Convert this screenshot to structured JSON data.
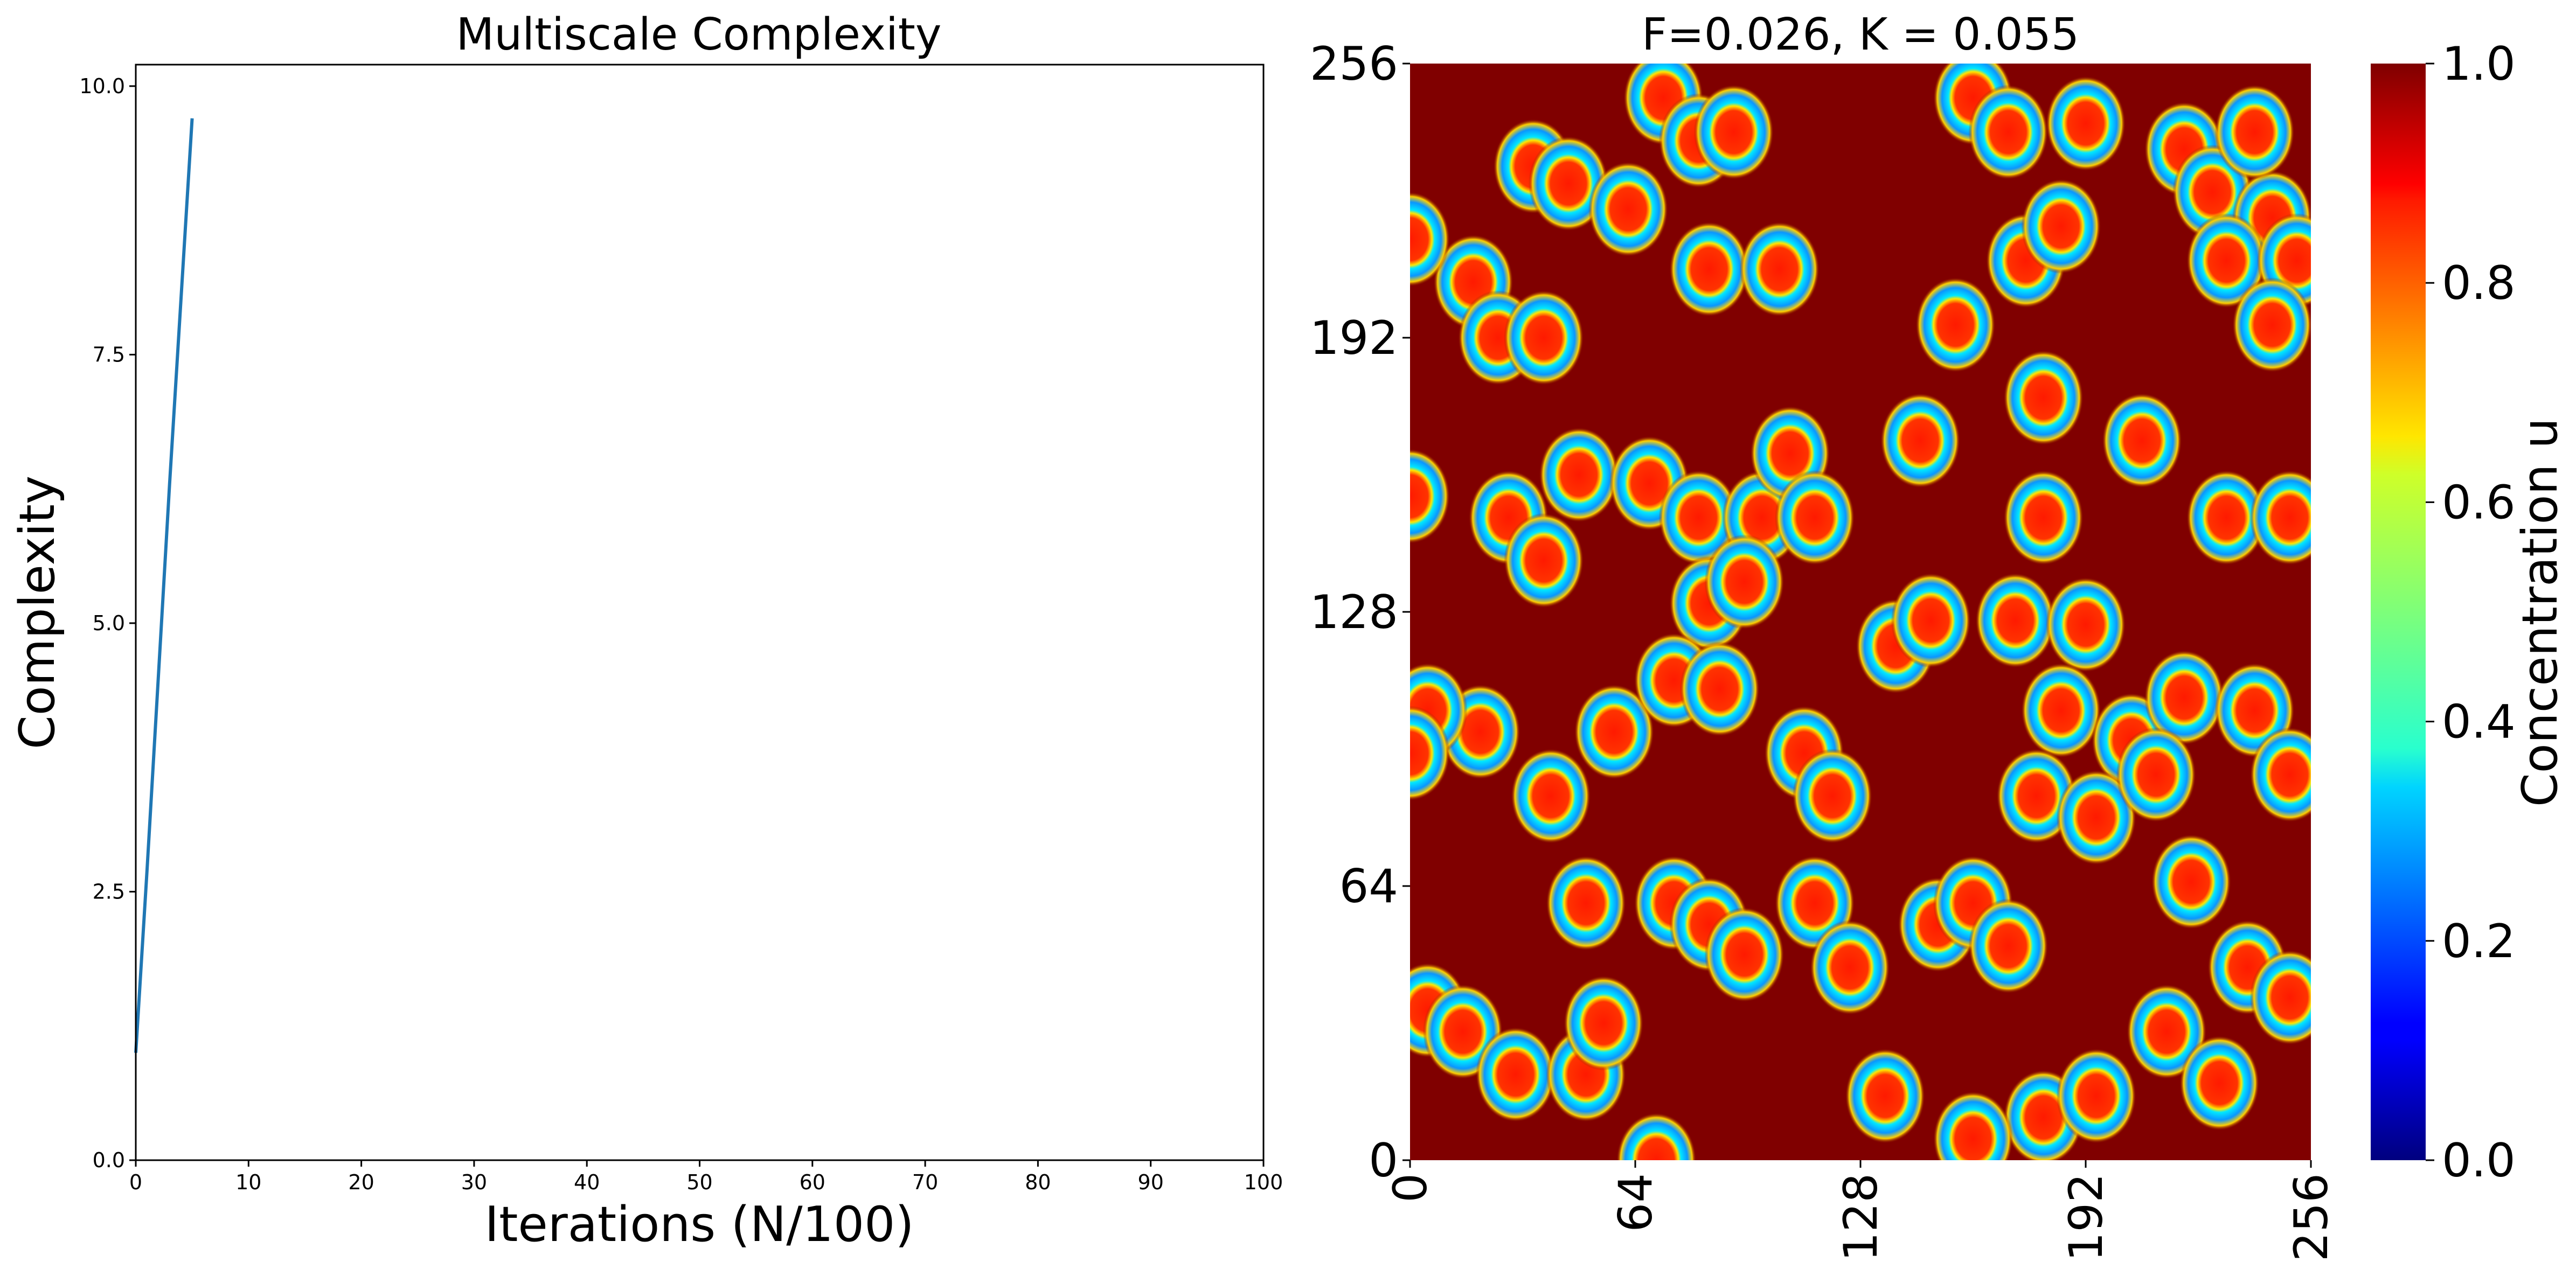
{
  "chart_data": [
    {
      "type": "line",
      "title": "Multiscale Complexity",
      "xlabel": "Iterations (N/100)",
      "ylabel": "Complexity",
      "xlim": [
        0,
        100
      ],
      "ylim": [
        0,
        10.2
      ],
      "xticks": [
        "0",
        "10",
        "20",
        "30",
        "40",
        "50",
        "60",
        "70",
        "80",
        "90",
        "100"
      ],
      "yticks": [
        "0.0",
        "2.5",
        "5.0",
        "7.5",
        "10.0"
      ],
      "line_color": "#1f77b4",
      "series": [
        {
          "x": [
            0,
            1,
            2,
            3,
            4,
            5
          ],
          "y": [
            1.0,
            2.7,
            4.5,
            6.3,
            8.0,
            9.7
          ]
        }
      ]
    },
    {
      "type": "heatmap",
      "title": "F=0.026, K = 0.055",
      "xticks": [
        "0",
        "64",
        "128",
        "192",
        "256"
      ],
      "yticks": [
        "0",
        "64",
        "128",
        "192",
        "256"
      ],
      "xlim": [
        0,
        256
      ],
      "ylim": [
        0,
        256
      ],
      "colormap": "jet",
      "colorbar_label": "Concentration u",
      "colorbar_ticks": [
        "0.0",
        "0.2",
        "0.4",
        "0.6",
        "0.8",
        "1.0"
      ],
      "background_color": "#800000",
      "spots": [
        [
          35,
          232
        ],
        [
          45,
          228
        ],
        [
          18,
          205
        ],
        [
          25,
          192
        ],
        [
          38,
          192
        ],
        [
          62,
          222
        ],
        [
          72,
          248
        ],
        [
          82,
          238
        ],
        [
          92,
          240
        ],
        [
          85,
          208
        ],
        [
          105,
          208
        ],
        [
          160,
          248
        ],
        [
          170,
          240
        ],
        [
          192,
          242
        ],
        [
          220,
          236
        ],
        [
          228,
          226
        ],
        [
          245,
          220
        ],
        [
          240,
          240
        ],
        [
          232,
          210
        ],
        [
          252,
          210
        ],
        [
          155,
          195
        ],
        [
          175,
          210
        ],
        [
          185,
          218
        ],
        [
          245,
          195
        ],
        [
          0,
          215
        ],
        [
          0,
          155
        ],
        [
          28,
          150
        ],
        [
          38,
          140
        ],
        [
          48,
          160
        ],
        [
          68,
          158
        ],
        [
          82,
          150
        ],
        [
          100,
          150
        ],
        [
          108,
          165
        ],
        [
          115,
          150
        ],
        [
          85,
          130
        ],
        [
          95,
          135
        ],
        [
          145,
          168
        ],
        [
          180,
          178
        ],
        [
          180,
          150
        ],
        [
          208,
          168
        ],
        [
          232,
          150
        ],
        [
          250,
          150
        ],
        [
          138,
          120
        ],
        [
          148,
          126
        ],
        [
          172,
          126
        ],
        [
          192,
          125
        ],
        [
          185,
          105
        ],
        [
          205,
          98
        ],
        [
          220,
          108
        ],
        [
          178,
          85
        ],
        [
          195,
          80
        ],
        [
          212,
          90
        ],
        [
          20,
          100
        ],
        [
          40,
          85
        ],
        [
          58,
          100
        ],
        [
          75,
          112
        ],
        [
          88,
          110
        ],
        [
          112,
          95
        ],
        [
          120,
          85
        ],
        [
          5,
          105
        ],
        [
          0,
          95
        ],
        [
          240,
          105
        ],
        [
          250,
          90
        ],
        [
          50,
          60
        ],
        [
          75,
          60
        ],
        [
          85,
          55
        ],
        [
          95,
          48
        ],
        [
          115,
          60
        ],
        [
          125,
          45
        ],
        [
          150,
          55
        ],
        [
          160,
          60
        ],
        [
          170,
          50
        ],
        [
          222,
          65
        ],
        [
          238,
          45
        ],
        [
          250,
          38
        ],
        [
          215,
          30
        ],
        [
          5,
          35
        ],
        [
          15,
          30
        ],
        [
          30,
          20
        ],
        [
          50,
          20
        ],
        [
          55,
          32
        ],
        [
          135,
          15
        ],
        [
          180,
          10
        ],
        [
          195,
          15
        ],
        [
          70,
          0
        ],
        [
          160,
          5
        ],
        [
          230,
          18
        ]
      ]
    }
  ]
}
